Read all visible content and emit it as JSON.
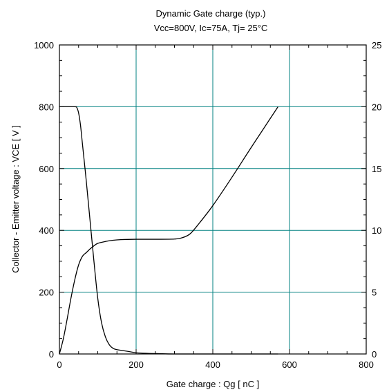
{
  "chart_data": {
    "type": "line",
    "title": "Dynamic Gate charge  (typ.)",
    "subtitle": "Vcc=800V, Ic=75A, Tj= 25°C",
    "xlabel": "Gate charge  :  Qg  [ nC ]",
    "ylabel": "Collector - Emitter voltage  :  VCE  [ V ]",
    "y2label": "",
    "xlim": [
      0,
      800
    ],
    "ylim": [
      0,
      1000
    ],
    "y2lim": [
      0,
      25
    ],
    "x_ticks": [
      0,
      200,
      400,
      600,
      800
    ],
    "y_ticks": [
      0,
      200,
      400,
      600,
      800,
      1000
    ],
    "y2_ticks": [
      0,
      5,
      10,
      15,
      20,
      25
    ],
    "grid": true,
    "grid_color": "#008080",
    "series": [
      {
        "axis": "left",
        "color": "#000000",
        "x": [
          0,
          40,
          45,
          50,
          55,
          60,
          70,
          80,
          90,
          100,
          110,
          120,
          130,
          140,
          150,
          160,
          180,
          200,
          230,
          260,
          300,
          400,
          570
        ],
        "values": [
          800,
          800,
          798,
          780,
          740,
          680,
          560,
          430,
          300,
          180,
          100,
          55,
          30,
          18,
          14,
          12,
          8,
          4,
          2,
          1,
          0,
          0,
          0
        ]
      },
      {
        "axis": "right",
        "color": "#000000",
        "x": [
          0,
          10,
          20,
          30,
          40,
          50,
          60,
          70,
          80,
          90,
          100,
          120,
          140,
          160,
          200,
          250,
          300,
          320,
          340,
          360,
          400,
          450,
          500,
          570
        ],
        "values": [
          0,
          1.2,
          2.8,
          4.5,
          6.0,
          7.2,
          7.9,
          8.2,
          8.5,
          8.75,
          8.95,
          9.1,
          9.2,
          9.25,
          9.28,
          9.28,
          9.3,
          9.4,
          9.7,
          10.4,
          12.0,
          14.3,
          16.7,
          20.0
        ]
      }
    ]
  }
}
